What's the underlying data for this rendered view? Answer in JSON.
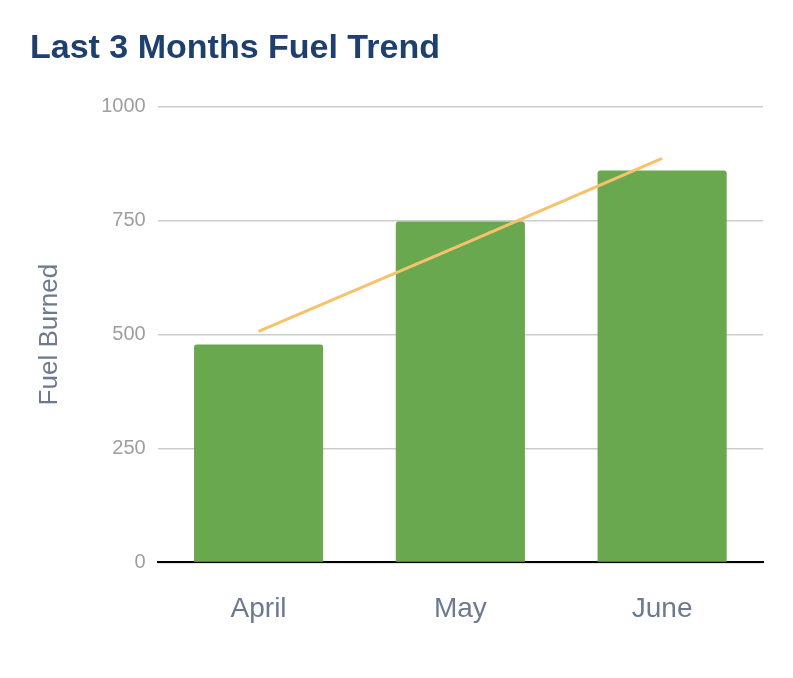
{
  "chart_data": {
    "type": "bar",
    "title": "Last 3 Months Fuel Trend",
    "y_label": "Fuel Burned",
    "categories": [
      "April",
      "May",
      "June"
    ],
    "series": [
      {
        "type": "bar",
        "color": "#6aa84f",
        "values": [
          478,
          748,
          860
        ]
      },
      {
        "type": "line",
        "color": "#f6c26b",
        "values": [
          507,
          696,
          887
        ]
      }
    ],
    "ylim": [
      0,
      1000
    ],
    "yticks": [
      0,
      250,
      500,
      750,
      1000
    ],
    "grid": true
  }
}
